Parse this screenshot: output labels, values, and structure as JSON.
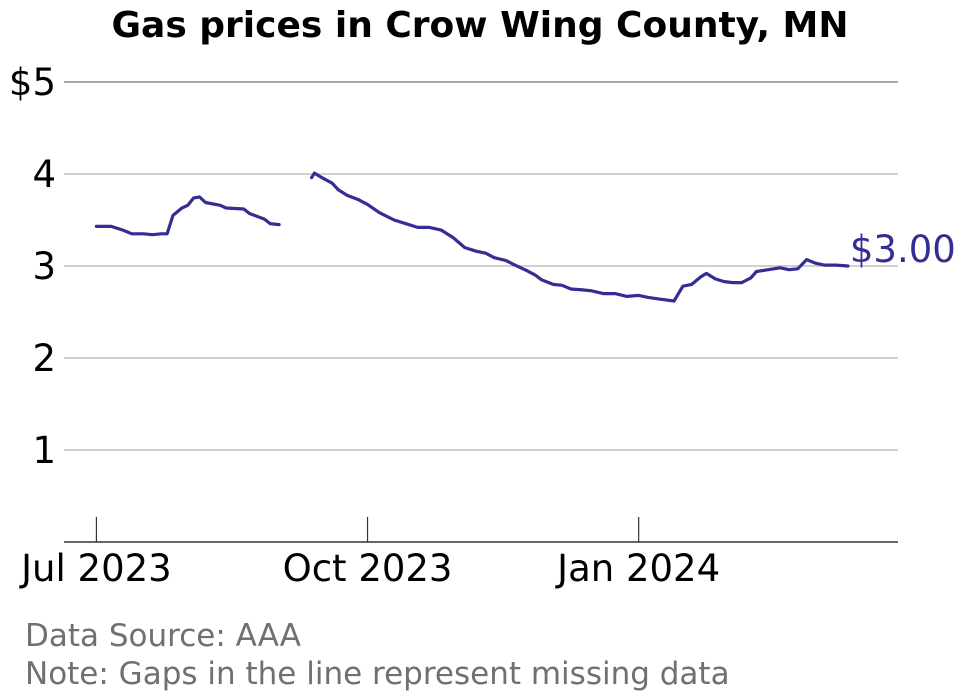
{
  "chart_data": {
    "type": "line",
    "title": "Gas prices in Crow Wing County, MN",
    "xlabel": "",
    "ylabel": "",
    "x_ticks": [
      {
        "date": "2023-07-01",
        "label": "Jul 2023"
      },
      {
        "date": "2023-10-01",
        "label": "Oct 2023"
      },
      {
        "date": "2024-01-01",
        "label": "Jan 2024"
      }
    ],
    "y_ticks": [
      {
        "value": 1,
        "label": "1"
      },
      {
        "value": 2,
        "label": "2"
      },
      {
        "value": 3,
        "label": "3"
      },
      {
        "value": 4,
        "label": "4"
      },
      {
        "value": 5,
        "label": "$5"
      }
    ],
    "ylim": [
      0,
      5
    ],
    "xlim": [
      "2023-06-20",
      "2024-03-29"
    ],
    "grid": "horizontal",
    "line_color": "#332d94",
    "series": [
      {
        "segments": [
          [
            [
              "2023-07-01",
              3.43
            ],
            [
              "2023-07-06",
              3.43
            ],
            [
              "2023-07-10",
              3.39
            ],
            [
              "2023-07-13",
              3.35
            ],
            [
              "2023-07-17",
              3.35
            ],
            [
              "2023-07-20",
              3.34
            ],
            [
              "2023-07-23",
              3.35
            ],
            [
              "2023-07-25",
              3.35
            ],
            [
              "2023-07-27",
              3.55
            ],
            [
              "2023-07-30",
              3.63
            ],
            [
              "2023-08-01",
              3.66
            ],
            [
              "2023-08-03",
              3.74
            ],
            [
              "2023-08-05",
              3.75
            ],
            [
              "2023-08-07",
              3.69
            ],
            [
              "2023-08-12",
              3.66
            ],
            [
              "2023-08-14",
              3.63
            ],
            [
              "2023-08-20",
              3.62
            ],
            [
              "2023-08-22",
              3.57
            ],
            [
              "2023-08-27",
              3.51
            ],
            [
              "2023-08-29",
              3.46
            ],
            [
              "2023-09-01",
              3.45
            ]
          ],
          [
            [
              "2023-09-12",
              3.96
            ],
            [
              "2023-09-13",
              4.01
            ],
            [
              "2023-09-15",
              3.97
            ],
            [
              "2023-09-19",
              3.9
            ],
            [
              "2023-09-21",
              3.83
            ],
            [
              "2023-09-24",
              3.77
            ],
            [
              "2023-09-28",
              3.72
            ],
            [
              "2023-10-01",
              3.67
            ],
            [
              "2023-10-05",
              3.58
            ],
            [
              "2023-10-10",
              3.5
            ],
            [
              "2023-10-14",
              3.46
            ],
            [
              "2023-10-18",
              3.42
            ],
            [
              "2023-10-22",
              3.42
            ],
            [
              "2023-10-26",
              3.39
            ],
            [
              "2023-10-30",
              3.31
            ],
            [
              "2023-11-03",
              3.2
            ],
            [
              "2023-11-07",
              3.16
            ],
            [
              "2023-11-10",
              3.14
            ],
            [
              "2023-11-13",
              3.09
            ],
            [
              "2023-11-17",
              3.06
            ],
            [
              "2023-11-20",
              3.01
            ],
            [
              "2023-11-24",
              2.95
            ],
            [
              "2023-11-27",
              2.9
            ],
            [
              "2023-11-29",
              2.85
            ],
            [
              "2023-12-03",
              2.8
            ],
            [
              "2023-12-06",
              2.79
            ],
            [
              "2023-12-09",
              2.75
            ],
            [
              "2023-12-13",
              2.74
            ],
            [
              "2023-12-16",
              2.73
            ],
            [
              "2023-12-20",
              2.7
            ],
            [
              "2023-12-24",
              2.7
            ],
            [
              "2023-12-28",
              2.67
            ],
            [
              "2024-01-01",
              2.68
            ],
            [
              "2024-01-04",
              2.66
            ],
            [
              "2024-01-08",
              2.64
            ],
            [
              "2024-01-13",
              2.62
            ],
            [
              "2024-01-16",
              2.78
            ],
            [
              "2024-01-19",
              2.8
            ],
            [
              "2024-01-22",
              2.88
            ],
            [
              "2024-01-24",
              2.92
            ],
            [
              "2024-01-27",
              2.86
            ],
            [
              "2024-01-30",
              2.83
            ],
            [
              "2024-02-02",
              2.82
            ],
            [
              "2024-02-05",
              2.82
            ],
            [
              "2024-02-08",
              2.87
            ],
            [
              "2024-02-10",
              2.94
            ],
            [
              "2024-02-14",
              2.96
            ],
            [
              "2024-02-18",
              2.98
            ],
            [
              "2024-02-21",
              2.96
            ],
            [
              "2024-02-24",
              2.97
            ],
            [
              "2024-02-27",
              3.07
            ],
            [
              "2024-03-01",
              3.03
            ],
            [
              "2024-03-04",
              3.01
            ],
            [
              "2024-03-08",
              3.01
            ],
            [
              "2024-03-12",
              3.0
            ]
          ]
        ]
      }
    ],
    "end_label": "$3.00",
    "notes": [
      "Data Source: AAA",
      "Note: Gaps in the line represent missing data"
    ]
  }
}
